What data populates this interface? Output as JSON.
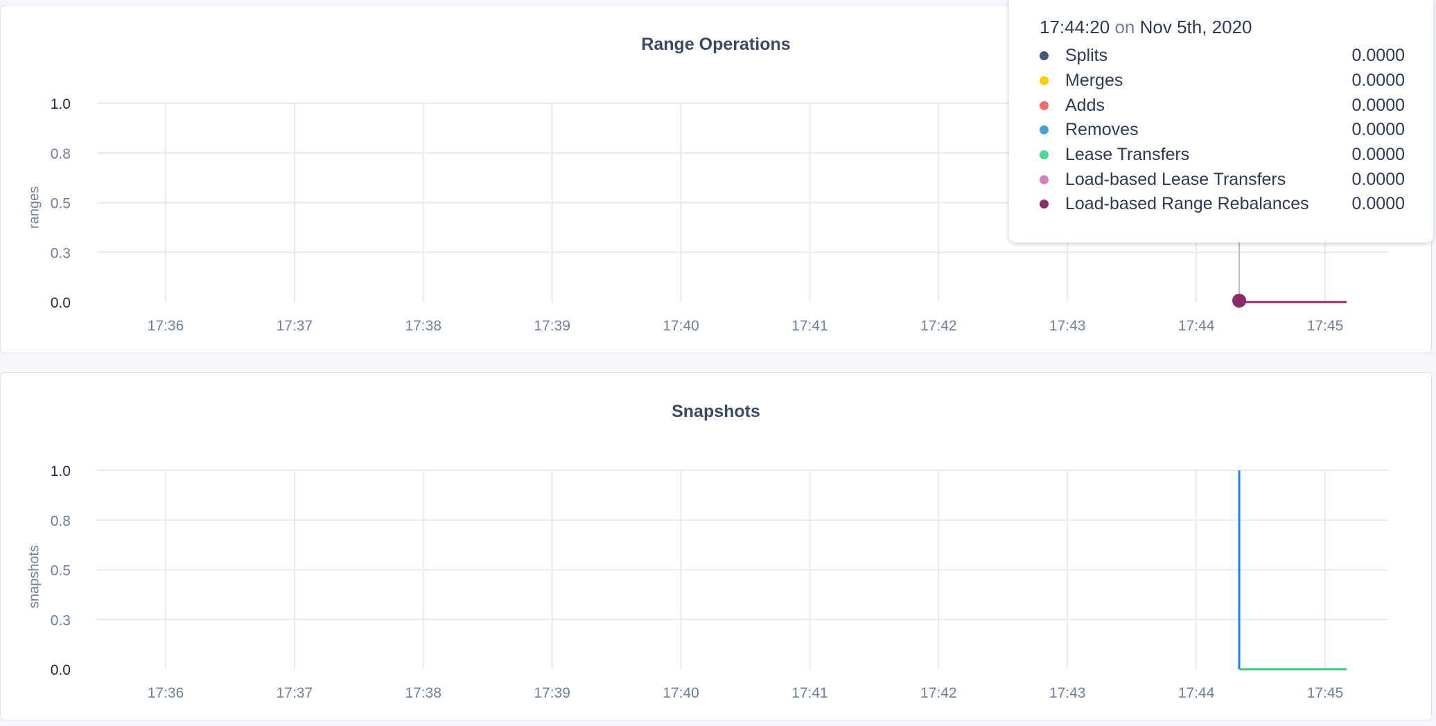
{
  "chart_data": [
    {
      "type": "line",
      "title": "Range Operations",
      "ylabel": "ranges",
      "xlabel": "",
      "x_ticks": [
        "17:36",
        "17:37",
        "17:38",
        "17:39",
        "17:40",
        "17:41",
        "17:42",
        "17:43",
        "17:44",
        "17:45"
      ],
      "y_ticks": [
        {
          "value": 0,
          "label": "0.0"
        },
        {
          "value": 0.25,
          "label": "0.3"
        },
        {
          "value": 0.5,
          "label": "0.5"
        },
        {
          "value": 0.75,
          "label": "0.8"
        },
        {
          "value": 1,
          "label": "1.0"
        }
      ],
      "ylim": [
        0,
        1
      ],
      "xlim": [
        "17:35:35",
        "17:45:40"
      ],
      "grid": true,
      "series": [
        {
          "name": "Load-based Range Rebalances",
          "color": "#8a2b6a",
          "x": [
            "17:44:20",
            "17:45:10"
          ],
          "y": [
            0,
            0
          ]
        }
      ],
      "hover": {
        "time": "17:44:20",
        "date": "Nov 5th, 2020",
        "on_label": "on",
        "rows": [
          {
            "name": "Splits",
            "color": "#475872",
            "value": "0.0000"
          },
          {
            "name": "Merges",
            "color": "#ffcd02",
            "value": "0.0000"
          },
          {
            "name": "Adds",
            "color": "#f16969",
            "value": "0.0000"
          },
          {
            "name": "Removes",
            "color": "#4e9fd1",
            "value": "0.0000"
          },
          {
            "name": "Lease Transfers",
            "color": "#49d990",
            "value": "0.0000"
          },
          {
            "name": "Load-based Lease Transfers",
            "color": "#d77fbf",
            "value": "0.0000"
          },
          {
            "name": "Load-based Range Rebalances",
            "color": "#8a2b6a",
            "value": "0.0000"
          }
        ]
      }
    },
    {
      "type": "line",
      "title": "Snapshots",
      "ylabel": "snapshots",
      "xlabel": "",
      "x_ticks": [
        "17:36",
        "17:37",
        "17:38",
        "17:39",
        "17:40",
        "17:41",
        "17:42",
        "17:43",
        "17:44",
        "17:45"
      ],
      "y_ticks": [
        {
          "value": 0,
          "label": "0.0"
        },
        {
          "value": 0.25,
          "label": "0.3"
        },
        {
          "value": 0.5,
          "label": "0.5"
        },
        {
          "value": 0.75,
          "label": "0.8"
        },
        {
          "value": 1,
          "label": "1.0"
        }
      ],
      "ylim": [
        0,
        1
      ],
      "xlim": [
        "17:35:35",
        "17:45:40"
      ],
      "grid": true,
      "series": [
        {
          "color": "#1a85f0",
          "x": [
            "17:44:20",
            "17:44:20"
          ],
          "y": [
            1,
            0
          ]
        },
        {
          "color": "#3cc47c",
          "x": [
            "17:44:20",
            "17:45:10"
          ],
          "y": [
            0,
            0
          ]
        }
      ]
    }
  ]
}
